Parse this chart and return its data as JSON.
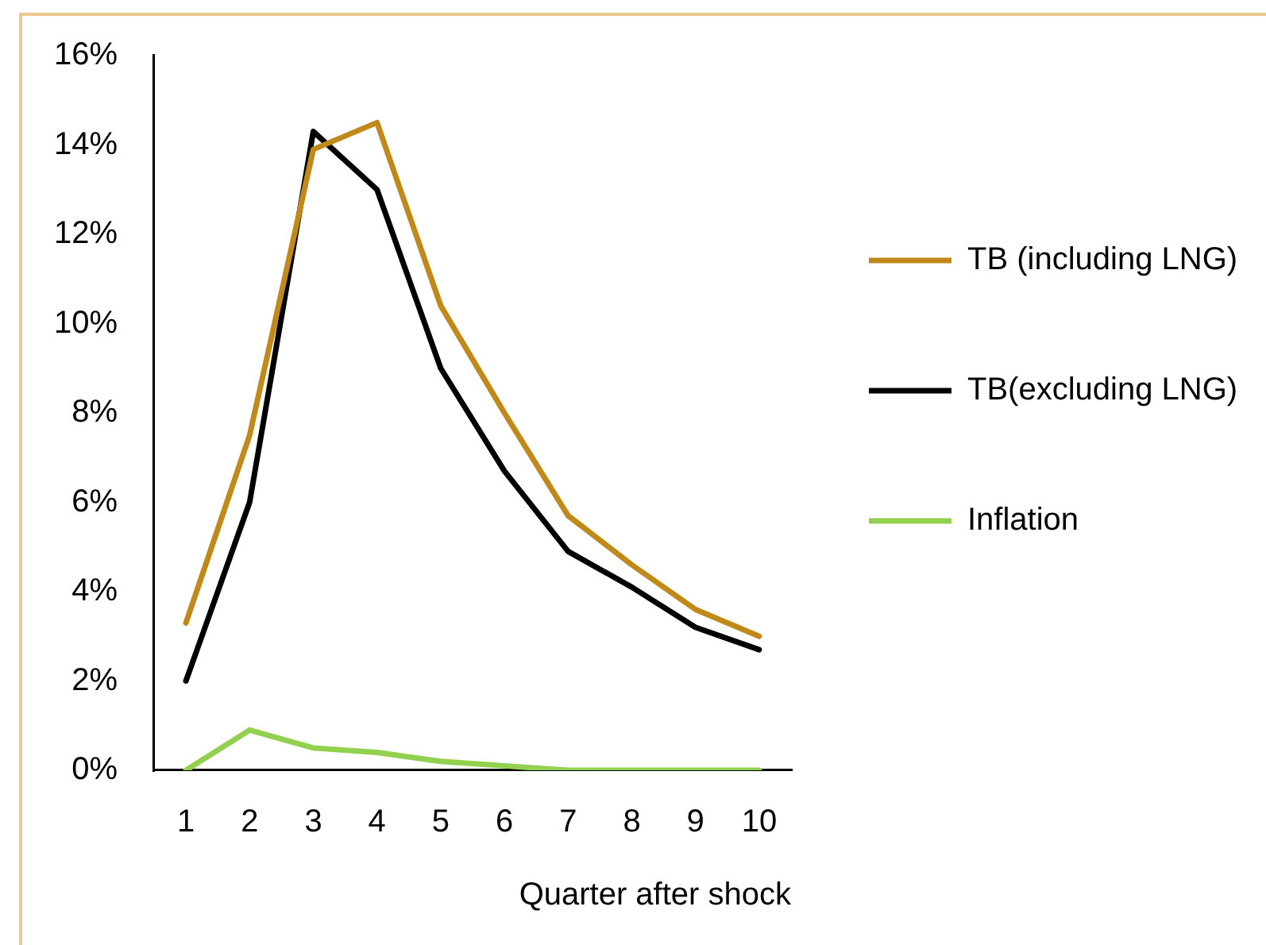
{
  "chart_data": {
    "type": "line",
    "xlabel": "Quarter after shock",
    "categories": [
      "1",
      "2",
      "3",
      "4",
      "5",
      "6",
      "7",
      "8",
      "9",
      "10"
    ],
    "series": [
      {
        "name": "TB (including LNG)",
        "color": "#c0891a",
        "values": [
          3.3,
          7.5,
          13.9,
          14.5,
          10.4,
          8.0,
          5.7,
          4.6,
          3.6,
          3.0
        ]
      },
      {
        "name": "TB(excluding LNG)",
        "color": "#000000",
        "values": [
          2.0,
          6.0,
          14.3,
          13.0,
          9.0,
          6.7,
          4.9,
          4.1,
          3.2,
          2.7
        ]
      },
      {
        "name": "Inflation",
        "color": "#92d050",
        "values": [
          0.0,
          0.9,
          0.5,
          0.4,
          0.2,
          0.1,
          0.0,
          0.0,
          0.0,
          0.0
        ]
      }
    ],
    "ylim": [
      0,
      16
    ],
    "yticks": [
      {
        "value": 0,
        "label": "0%"
      },
      {
        "value": 2,
        "label": "2%"
      },
      {
        "value": 4,
        "label": "4%"
      },
      {
        "value": 6,
        "label": "6%"
      },
      {
        "value": 8,
        "label": "8%"
      },
      {
        "value": 10,
        "label": "10%"
      },
      {
        "value": 12,
        "label": "12%"
      },
      {
        "value": 14,
        "label": "14%"
      },
      {
        "value": 16,
        "label": "16%"
      }
    ],
    "grid": false,
    "legend": "right",
    "marker": "none",
    "line_style": "solid"
  }
}
